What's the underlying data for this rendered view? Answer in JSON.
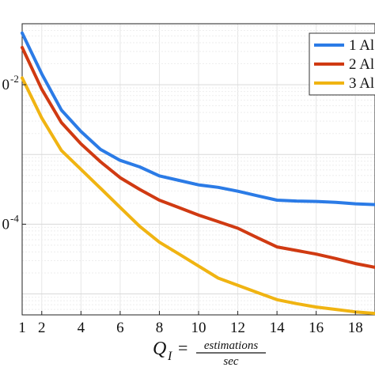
{
  "chart_data": {
    "type": "line",
    "xlabel": {
      "symbol": "Q",
      "subscript": "I",
      "equals": "=",
      "numerator": "estimations",
      "denominator": "sec"
    },
    "ylabel": "",
    "x_ticks": [
      "1",
      "2",
      "4",
      "6",
      "8",
      "10",
      "12",
      "14",
      "16",
      "18"
    ],
    "y_ticks": [
      {
        "base": "0",
        "exp": "-2",
        "value": 0.01
      },
      {
        "base": "0",
        "exp": "-4",
        "value": 0.0001
      }
    ],
    "xlim": [
      1,
      19
    ],
    "ylim": [
      5.01e-06,
      0.0749
    ],
    "y_scale": "log",
    "grid": true,
    "legend_position": "top-right",
    "series": [
      {
        "name": "1 Al",
        "color": "#2b7be6",
        "x": [
          1,
          2,
          3,
          4,
          5,
          6,
          7,
          8,
          9,
          10,
          11,
          12,
          13,
          14,
          15,
          16,
          17,
          18,
          19
        ],
        "y": [
          0.0552,
          0.0143,
          0.00433,
          0.00214,
          0.00118,
          0.000822,
          0.000663,
          0.000493,
          0.000425,
          0.000366,
          0.000338,
          0.000297,
          0.000256,
          0.000221,
          0.000215,
          0.000212,
          0.000206,
          0.000196,
          0.000191
        ]
      },
      {
        "name": "2 Al",
        "color": "#d03a12",
        "x": [
          1,
          2,
          3,
          4,
          5,
          6,
          7,
          8,
          9,
          10,
          11,
          12,
          13,
          14,
          15,
          16,
          17,
          18,
          19
        ],
        "y": [
          0.0342,
          0.00862,
          0.00287,
          0.00142,
          0.000785,
          0.000465,
          0.000315,
          0.000221,
          0.000173,
          0.000135,
          0.000109,
          8.76e-05,
          6.42e-05,
          4.73e-05,
          4.2e-05,
          3.72e-05,
          3.22e-05,
          2.73e-05,
          2.41e-05
        ]
      },
      {
        "name": "3 Al",
        "color": "#f0b412",
        "x": [
          1,
          2,
          3,
          4,
          5,
          6,
          7,
          8,
          9,
          10,
          11,
          12,
          13,
          14,
          15,
          16,
          17,
          18,
          19
        ],
        "y": [
          0.0125,
          0.00333,
          0.00114,
          0.000611,
          0.000327,
          0.000174,
          9.3e-05,
          5.53e-05,
          3.73e-05,
          2.51e-05,
          1.69e-05,
          1.33e-05,
          1.05e-05,
          8.28e-06,
          7.26e-06,
          6.49e-06,
          6e-06,
          5.54e-06,
          5.26e-06
        ]
      }
    ]
  }
}
